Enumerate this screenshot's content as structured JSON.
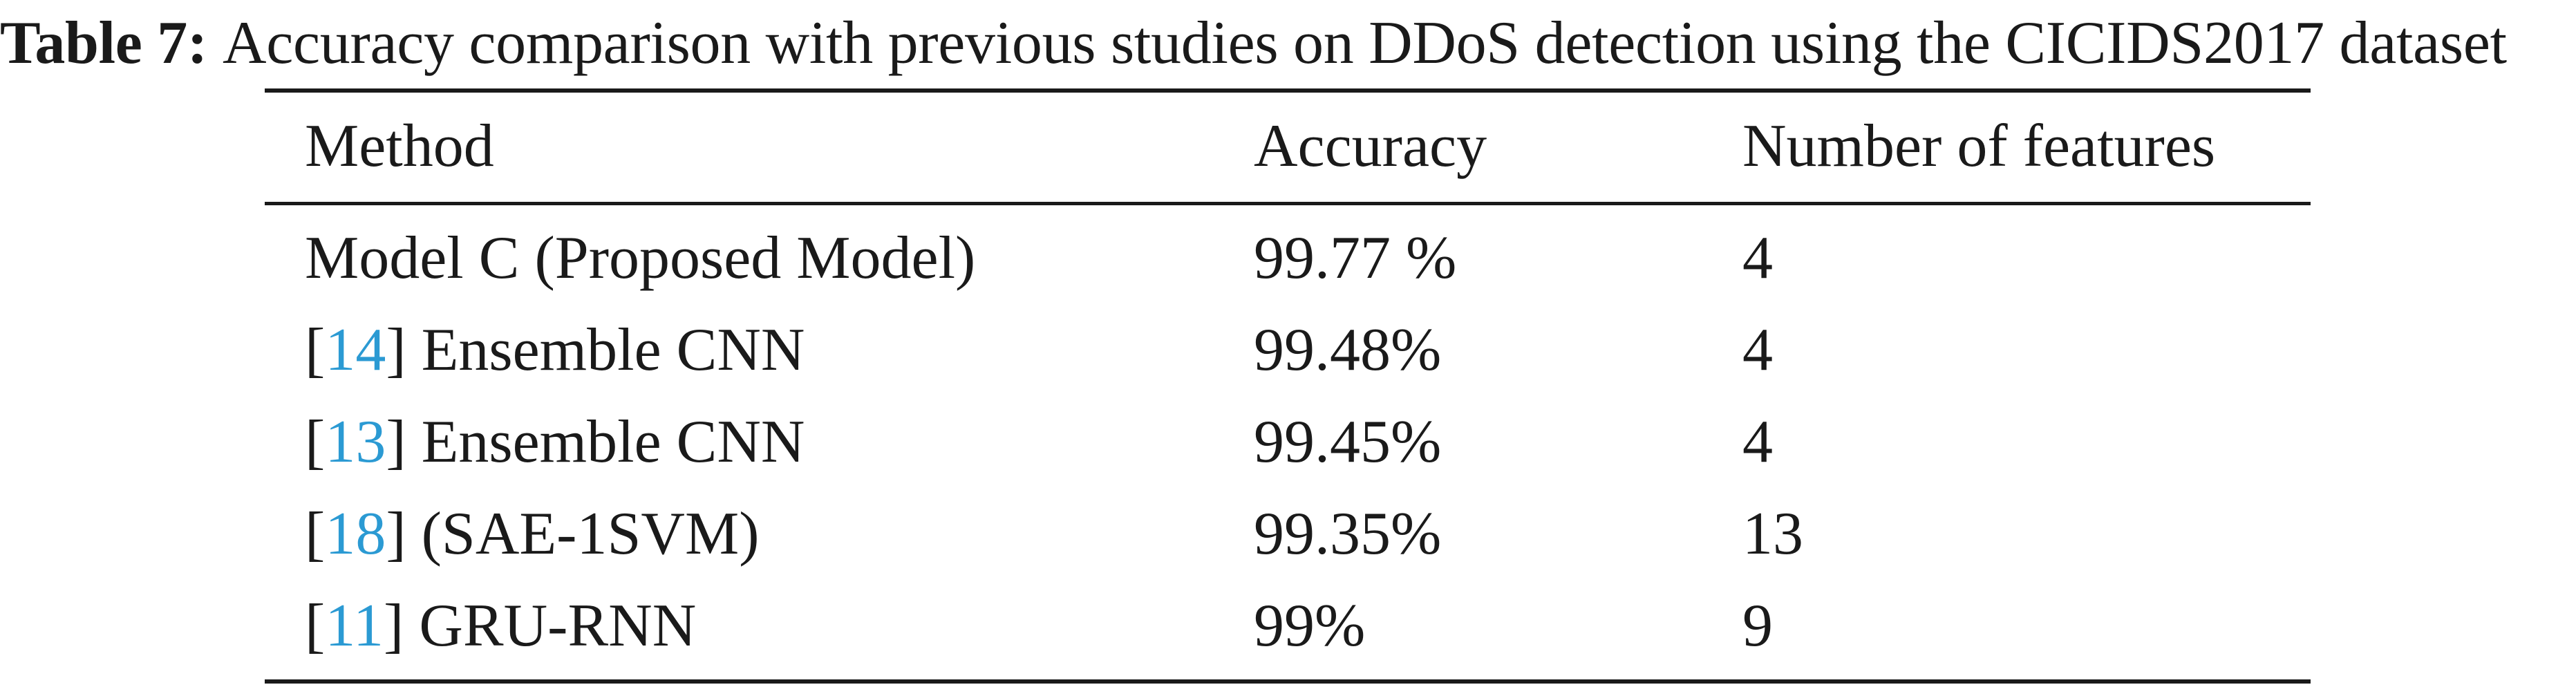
{
  "caption": {
    "label": "Table 7:",
    "text": "Accuracy comparison with previous studies on DDoS detection using the CICIDS2017 dataset"
  },
  "table": {
    "headers": {
      "method": "Method",
      "accuracy": "Accuracy",
      "features": "Number of features"
    },
    "rows": [
      {
        "ref": "",
        "method": "Model C (Proposed Model)",
        "accuracy": "99.77 %",
        "features": "4"
      },
      {
        "ref": "14",
        "method": "Ensemble CNN",
        "accuracy": "99.48%",
        "features": "4"
      },
      {
        "ref": "13",
        "method": "Ensemble CNN",
        "accuracy": "99.45%",
        "features": "4"
      },
      {
        "ref": "18",
        "method": "(SAE-1SVM)",
        "accuracy": "99.35%",
        "features": "13"
      },
      {
        "ref": "11",
        "method": "GRU-RNN",
        "accuracy": "99%",
        "features": "9"
      }
    ]
  },
  "colors": {
    "text": "#1a1a1a",
    "reference_link": "#2b9ad3"
  }
}
